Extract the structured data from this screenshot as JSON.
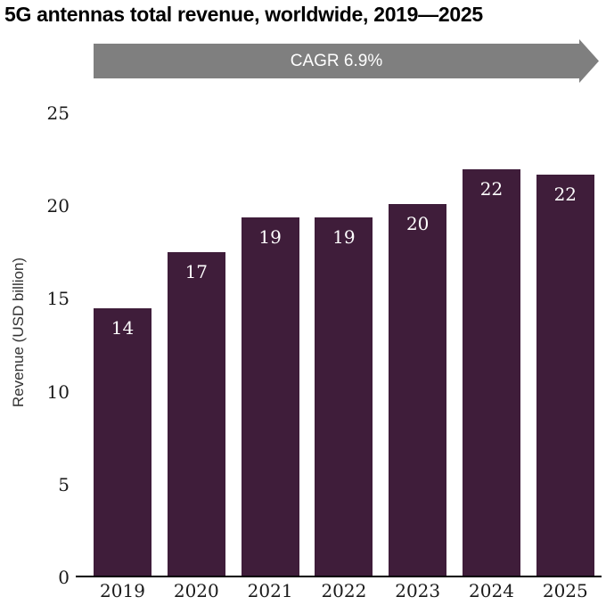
{
  "title": "5G antennas total revenue, worldwide, 2019—2025",
  "banner": {
    "label": "CAGR 6.9%",
    "fill_color": "#7f7f7f",
    "text_color": "#ffffff"
  },
  "chart_data": {
    "type": "bar",
    "title": "5G antennas total revenue, worldwide, 2019—2025",
    "categories": [
      "2019",
      "2020",
      "2021",
      "2022",
      "2023",
      "2024",
      "2025"
    ],
    "values": [
      14.4,
      17.4,
      19.3,
      19.3,
      20.0,
      21.9,
      21.6
    ],
    "bar_labels": [
      "14",
      "17",
      "19",
      "19",
      "20",
      "22",
      "22"
    ],
    "xlabel": "",
    "ylabel": "Revenue (USD billion)",
    "ylim": [
      0,
      26
    ],
    "yticks": [
      0,
      5,
      10,
      15,
      20,
      25
    ],
    "grid": false,
    "legend": "none",
    "bar_color": "#3f1d3a",
    "bar_label_color": "#ffffff",
    "axis_color": "#000000",
    "annotation": "CAGR 6.9%"
  }
}
